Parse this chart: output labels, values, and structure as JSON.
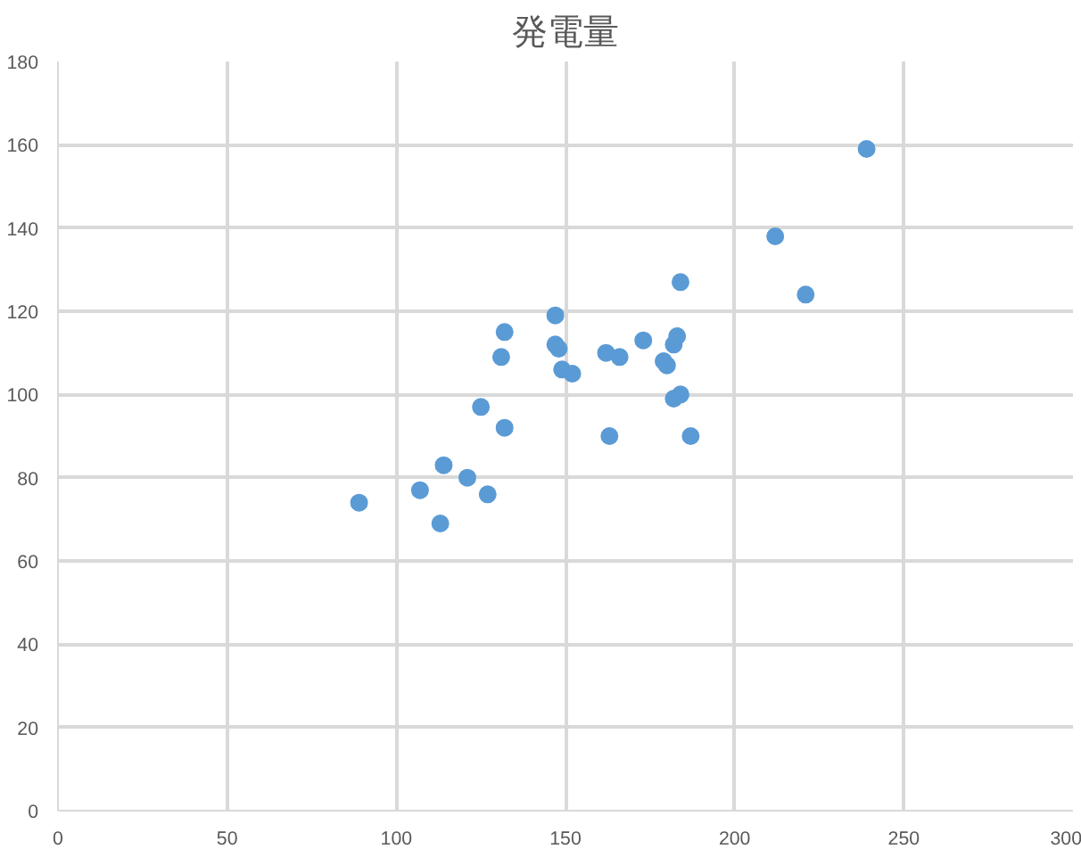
{
  "chart_data": {
    "type": "scatter",
    "title": "発電量",
    "x": [
      89,
      107,
      113,
      114,
      121,
      127,
      125,
      132,
      132,
      131,
      147,
      147,
      148,
      149,
      152,
      162,
      166,
      163,
      173,
      179,
      180,
      182,
      183,
      184,
      182,
      184,
      187,
      212,
      221,
      239
    ],
    "series": [
      {
        "color": "#5b9bd5",
        "values": [
          74,
          77,
          69,
          83,
          80,
          76,
          97,
          92,
          115,
          109,
          119,
          112,
          111,
          106,
          105,
          110,
          109,
          90,
          113,
          108,
          107,
          112,
          114,
          127,
          99,
          100,
          90,
          138,
          124,
          159
        ]
      }
    ],
    "xlim": [
      0,
      300
    ],
    "ylim": [
      0,
      180
    ],
    "xticks": [
      0,
      50,
      100,
      150,
      200,
      250,
      300
    ],
    "yticks": [
      0,
      20,
      40,
      60,
      80,
      100,
      120,
      140,
      160,
      180
    ],
    "grid": true,
    "marker": "circle"
  }
}
